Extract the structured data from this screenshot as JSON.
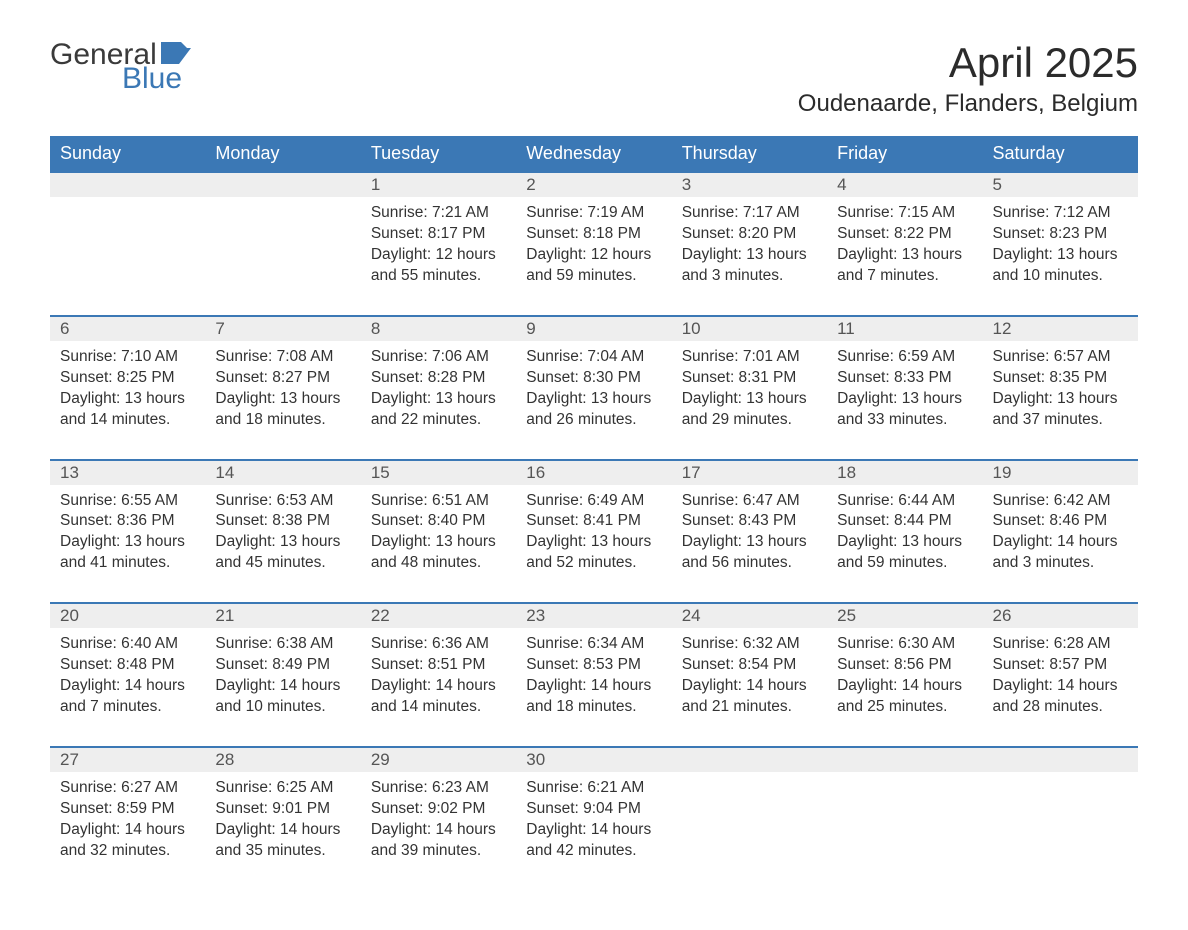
{
  "brand": {
    "word1": "General",
    "word2": "Blue",
    "accent_color": "#3b78b5",
    "text_color": "#3a3a3a"
  },
  "title": "April 2025",
  "location": "Oudenaarde, Flanders, Belgium",
  "header_bg": "#3b78b5",
  "header_fg": "#ffffff",
  "daynum_bg": "#eeeeee",
  "daynum_fg": "#555555",
  "body_fg": "#333333",
  "page_bg": "#ffffff",
  "days_of_week": [
    "Sunday",
    "Monday",
    "Tuesday",
    "Wednesday",
    "Thursday",
    "Friday",
    "Saturday"
  ],
  "labels": {
    "sunrise": "Sunrise",
    "sunset": "Sunset",
    "daylight": "Daylight",
    "hours": "hours",
    "minutes": "minutes"
  },
  "fonts": {
    "title_pt": 42,
    "location_pt": 24,
    "dow_pt": 18,
    "daynum_pt": 17,
    "body_pt": 15.5
  },
  "weeks": [
    [
      null,
      null,
      {
        "n": "1",
        "sunrise": "7:21 AM",
        "sunset": "8:17 PM",
        "dl_h": "12",
        "dl_m": "55"
      },
      {
        "n": "2",
        "sunrise": "7:19 AM",
        "sunset": "8:18 PM",
        "dl_h": "12",
        "dl_m": "59"
      },
      {
        "n": "3",
        "sunrise": "7:17 AM",
        "sunset": "8:20 PM",
        "dl_h": "13",
        "dl_m": "3"
      },
      {
        "n": "4",
        "sunrise": "7:15 AM",
        "sunset": "8:22 PM",
        "dl_h": "13",
        "dl_m": "7"
      },
      {
        "n": "5",
        "sunrise": "7:12 AM",
        "sunset": "8:23 PM",
        "dl_h": "13",
        "dl_m": "10"
      }
    ],
    [
      {
        "n": "6",
        "sunrise": "7:10 AM",
        "sunset": "8:25 PM",
        "dl_h": "13",
        "dl_m": "14"
      },
      {
        "n": "7",
        "sunrise": "7:08 AM",
        "sunset": "8:27 PM",
        "dl_h": "13",
        "dl_m": "18"
      },
      {
        "n": "8",
        "sunrise": "7:06 AM",
        "sunset": "8:28 PM",
        "dl_h": "13",
        "dl_m": "22"
      },
      {
        "n": "9",
        "sunrise": "7:04 AM",
        "sunset": "8:30 PM",
        "dl_h": "13",
        "dl_m": "26"
      },
      {
        "n": "10",
        "sunrise": "7:01 AM",
        "sunset": "8:31 PM",
        "dl_h": "13",
        "dl_m": "29"
      },
      {
        "n": "11",
        "sunrise": "6:59 AM",
        "sunset": "8:33 PM",
        "dl_h": "13",
        "dl_m": "33"
      },
      {
        "n": "12",
        "sunrise": "6:57 AM",
        "sunset": "8:35 PM",
        "dl_h": "13",
        "dl_m": "37"
      }
    ],
    [
      {
        "n": "13",
        "sunrise": "6:55 AM",
        "sunset": "8:36 PM",
        "dl_h": "13",
        "dl_m": "41"
      },
      {
        "n": "14",
        "sunrise": "6:53 AM",
        "sunset": "8:38 PM",
        "dl_h": "13",
        "dl_m": "45"
      },
      {
        "n": "15",
        "sunrise": "6:51 AM",
        "sunset": "8:40 PM",
        "dl_h": "13",
        "dl_m": "48"
      },
      {
        "n": "16",
        "sunrise": "6:49 AM",
        "sunset": "8:41 PM",
        "dl_h": "13",
        "dl_m": "52"
      },
      {
        "n": "17",
        "sunrise": "6:47 AM",
        "sunset": "8:43 PM",
        "dl_h": "13",
        "dl_m": "56"
      },
      {
        "n": "18",
        "sunrise": "6:44 AM",
        "sunset": "8:44 PM",
        "dl_h": "13",
        "dl_m": "59"
      },
      {
        "n": "19",
        "sunrise": "6:42 AM",
        "sunset": "8:46 PM",
        "dl_h": "14",
        "dl_m": "3"
      }
    ],
    [
      {
        "n": "20",
        "sunrise": "6:40 AM",
        "sunset": "8:48 PM",
        "dl_h": "14",
        "dl_m": "7"
      },
      {
        "n": "21",
        "sunrise": "6:38 AM",
        "sunset": "8:49 PM",
        "dl_h": "14",
        "dl_m": "10"
      },
      {
        "n": "22",
        "sunrise": "6:36 AM",
        "sunset": "8:51 PM",
        "dl_h": "14",
        "dl_m": "14"
      },
      {
        "n": "23",
        "sunrise": "6:34 AM",
        "sunset": "8:53 PM",
        "dl_h": "14",
        "dl_m": "18"
      },
      {
        "n": "24",
        "sunrise": "6:32 AM",
        "sunset": "8:54 PM",
        "dl_h": "14",
        "dl_m": "21"
      },
      {
        "n": "25",
        "sunrise": "6:30 AM",
        "sunset": "8:56 PM",
        "dl_h": "14",
        "dl_m": "25"
      },
      {
        "n": "26",
        "sunrise": "6:28 AM",
        "sunset": "8:57 PM",
        "dl_h": "14",
        "dl_m": "28"
      }
    ],
    [
      {
        "n": "27",
        "sunrise": "6:27 AM",
        "sunset": "8:59 PM",
        "dl_h": "14",
        "dl_m": "32"
      },
      {
        "n": "28",
        "sunrise": "6:25 AM",
        "sunset": "9:01 PM",
        "dl_h": "14",
        "dl_m": "35"
      },
      {
        "n": "29",
        "sunrise": "6:23 AM",
        "sunset": "9:02 PM",
        "dl_h": "14",
        "dl_m": "39"
      },
      {
        "n": "30",
        "sunrise": "6:21 AM",
        "sunset": "9:04 PM",
        "dl_h": "14",
        "dl_m": "42"
      },
      null,
      null,
      null
    ]
  ]
}
